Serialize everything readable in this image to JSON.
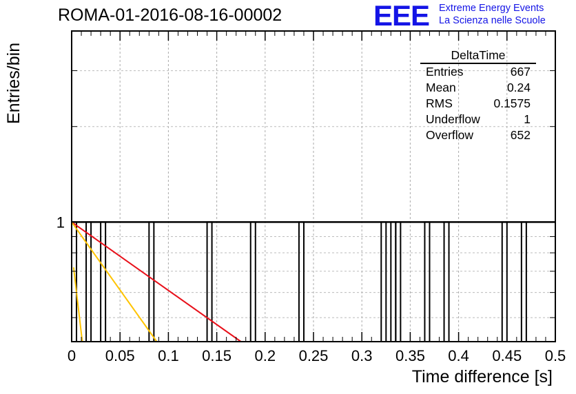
{
  "title": "ROMA-01-2016-08-16-00002",
  "logo": {
    "mark": "EEE",
    "line1": "Extreme Energy Events",
    "line2": "La Scienza nelle Scuole"
  },
  "stats": {
    "title": "DeltaTime",
    "rows": [
      {
        "label": "Entries",
        "value": "667"
      },
      {
        "label": "Mean",
        "value": "0.24"
      },
      {
        "label": "RMS",
        "value": "0.1575"
      },
      {
        "label": "Underflow",
        "value": "1"
      },
      {
        "label": "Overflow",
        "value": "652"
      }
    ]
  },
  "chart_data": {
    "type": "bar",
    "title": "ROMA-01-2016-08-16-00002",
    "xlabel": "Time difference [s]",
    "ylabel": "Entries/bin",
    "xlim": [
      0,
      0.5
    ],
    "ylim": [
      0.42,
      4.0
    ],
    "y_scale": "log",
    "grid": true,
    "x_ticks": [
      "0",
      "0.05",
      "0.1",
      "0.15",
      "0.2",
      "0.25",
      "0.3",
      "0.35",
      "0.4",
      "0.45",
      "0.5"
    ],
    "y_ticks": [
      "1"
    ],
    "bin_width": 0.005,
    "bins": [
      {
        "x_low": 0.0,
        "value": 1
      },
      {
        "x_low": 0.015,
        "value": 1
      },
      {
        "x_low": 0.03,
        "value": 1
      },
      {
        "x_low": 0.08,
        "value": 1
      },
      {
        "x_low": 0.14,
        "value": 1
      },
      {
        "x_low": 0.185,
        "value": 1
      },
      {
        "x_low": 0.235,
        "value": 1
      },
      {
        "x_low": 0.32,
        "value": 1
      },
      {
        "x_low": 0.33,
        "value": 1
      },
      {
        "x_low": 0.335,
        "value": 1
      },
      {
        "x_low": 0.365,
        "value": 1
      },
      {
        "x_low": 0.385,
        "value": 1
      },
      {
        "x_low": 0.445,
        "value": 1
      },
      {
        "x_low": 0.465,
        "value": 1
      }
    ],
    "fit_lines": [
      {
        "color": "#e8101a",
        "points": [
          [
            0.0,
            1.0
          ],
          [
            0.175,
            0.42
          ]
        ]
      },
      {
        "color": "#ffc400",
        "points": [
          [
            0.0,
            1.0
          ],
          [
            0.088,
            0.42
          ]
        ]
      },
      {
        "color": "#ffc400",
        "points": [
          [
            0.002,
            0.72
          ],
          [
            0.011,
            0.42
          ]
        ]
      }
    ]
  }
}
